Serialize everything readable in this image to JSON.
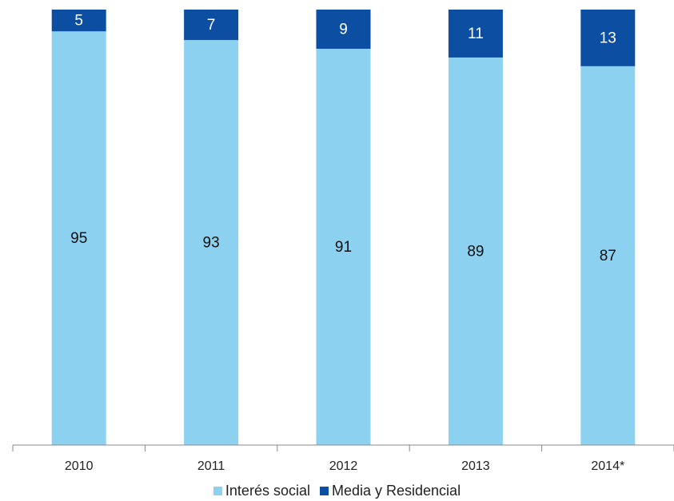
{
  "chart_data": {
    "type": "bar",
    "stacked": true,
    "categories": [
      "2010",
      "2011",
      "2012",
      "2013",
      "2014*"
    ],
    "series": [
      {
        "name": "Interés social",
        "color": "#8dd1f0",
        "values": [
          95,
          93,
          91,
          89,
          87
        ]
      },
      {
        "name": "Media y Residencial",
        "color": "#0b4ea2",
        "values": [
          5,
          7,
          9,
          11,
          13
        ]
      }
    ],
    "ylim": [
      0,
      100
    ],
    "grid": false,
    "legend_position": "bottom"
  }
}
